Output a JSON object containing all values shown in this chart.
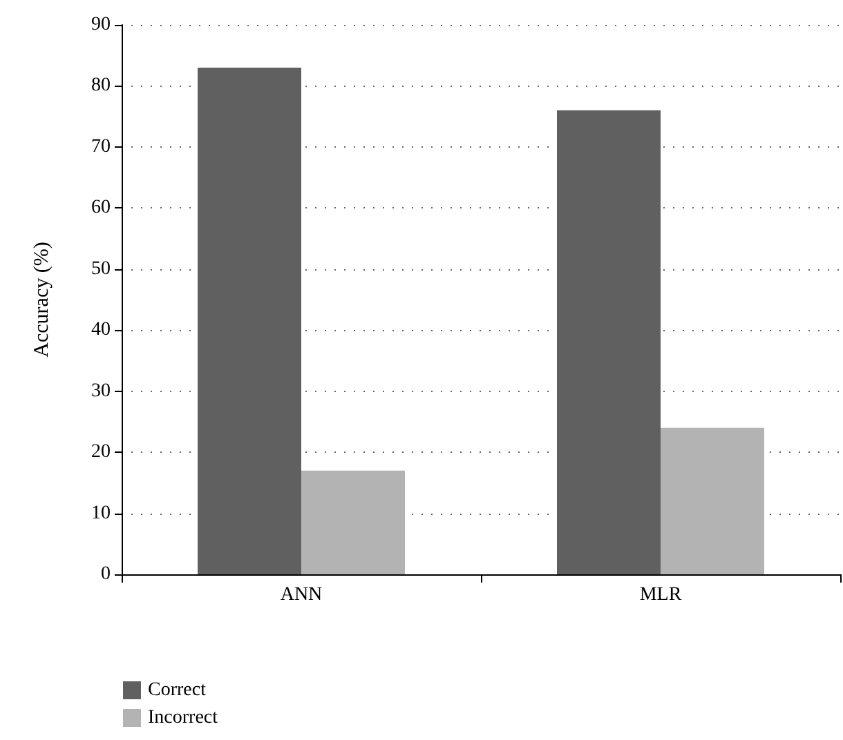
{
  "chart_data": {
    "type": "bar",
    "ylabel": "Accuracy (%)",
    "categories": [
      "ANN",
      "MLR"
    ],
    "series": [
      {
        "name": "Correct",
        "color": "#606060",
        "values": [
          83,
          76
        ]
      },
      {
        "name": "Incorrect",
        "color": "#b3b3b3",
        "values": [
          17,
          24
        ]
      }
    ],
    "ylim": [
      0,
      90
    ],
    "yticks": [
      0,
      10,
      20,
      30,
      40,
      50,
      60,
      70,
      80,
      90
    ],
    "grid": "y",
    "legend": "bottom left"
  }
}
